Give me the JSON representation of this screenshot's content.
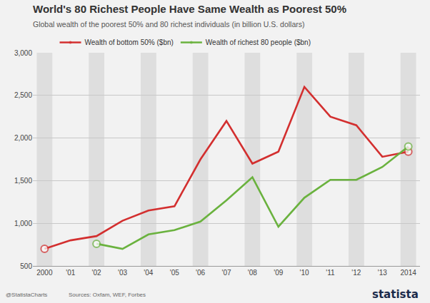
{
  "chart_data": {
    "type": "line",
    "title": "World's 80 Richest People Have Same Wealth as Poorest 50%",
    "subtitle": "Global wealth of the poorest 50% and 80 richest individuals (in billion U.S. dollars)",
    "categories": [
      "2000",
      "'01",
      "'02",
      "'03",
      "'04",
      "'05",
      "'06",
      "'07",
      "'08",
      "'09",
      "'10",
      "'11",
      "'12",
      "'13",
      "2014"
    ],
    "series": [
      {
        "name": "Wealth of bottom 50% ($bn)",
        "color": "#d32f2f",
        "values": [
          700,
          800,
          850,
          1030,
          1150,
          1200,
          1750,
          2200,
          1700,
          1840,
          2600,
          2250,
          2150,
          1780,
          1840
        ]
      },
      {
        "name": "Wealth of richest 80 people ($bn)",
        "color": "#6ab23e",
        "values": [
          null,
          null,
          760,
          700,
          870,
          920,
          1020,
          1270,
          1540,
          960,
          1300,
          1510,
          1510,
          1660,
          1900
        ]
      }
    ],
    "ylim": [
      500,
      3000
    ],
    "yticks": [
      500,
      {
        "value": 1000,
        "label": "1,000"
      },
      {
        "value": 1500,
        "label": "1,500"
      },
      {
        "value": 2000,
        "label": "2,000"
      },
      {
        "value": 2500,
        "label": "2,500"
      },
      {
        "value": 3000,
        "label": "3,000"
      }
    ],
    "grid": true,
    "legend": "top left",
    "marker": "circle",
    "annotations": [
      "@StatistaCharts",
      "Sources: Oxfam, WEF, Forbes",
      "statista"
    ]
  }
}
